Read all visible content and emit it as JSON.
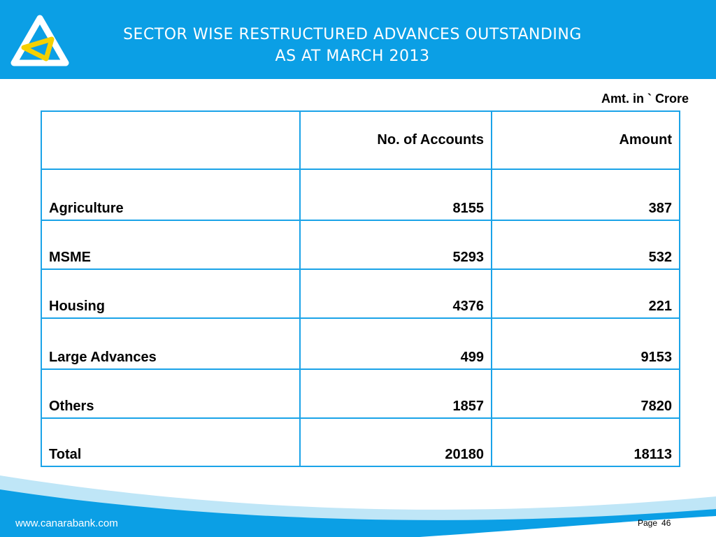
{
  "header": {
    "title_line1": "SECTOR WISE RESTRUCTURED ADVANCES OUTSTANDING",
    "title_line2": "AS AT MARCH 2013"
  },
  "unit_note": "Amt. in ` Crore",
  "table": {
    "columns": [
      "",
      "No. of Accounts",
      "Amount"
    ],
    "rows": [
      {
        "sector": "Agriculture",
        "accounts": "8155",
        "amount": "387"
      },
      {
        "sector": "MSME",
        "accounts": "5293",
        "amount": "532"
      },
      {
        "sector": "Housing",
        "accounts": "4376",
        "amount": "221"
      },
      {
        "sector": "Large Advances",
        "accounts": "499",
        "amount": "9153"
      },
      {
        "sector": "Others",
        "accounts": "1857",
        "amount": "7820"
      },
      {
        "sector": "Total",
        "accounts": "20180",
        "amount": "18113"
      }
    ]
  },
  "footer": {
    "url": "www.canarabank.com",
    "page_label": "Page",
    "page_number": "46"
  },
  "colors": {
    "accent": "#0b9fe5",
    "logo_yellow": "#f5d000"
  }
}
